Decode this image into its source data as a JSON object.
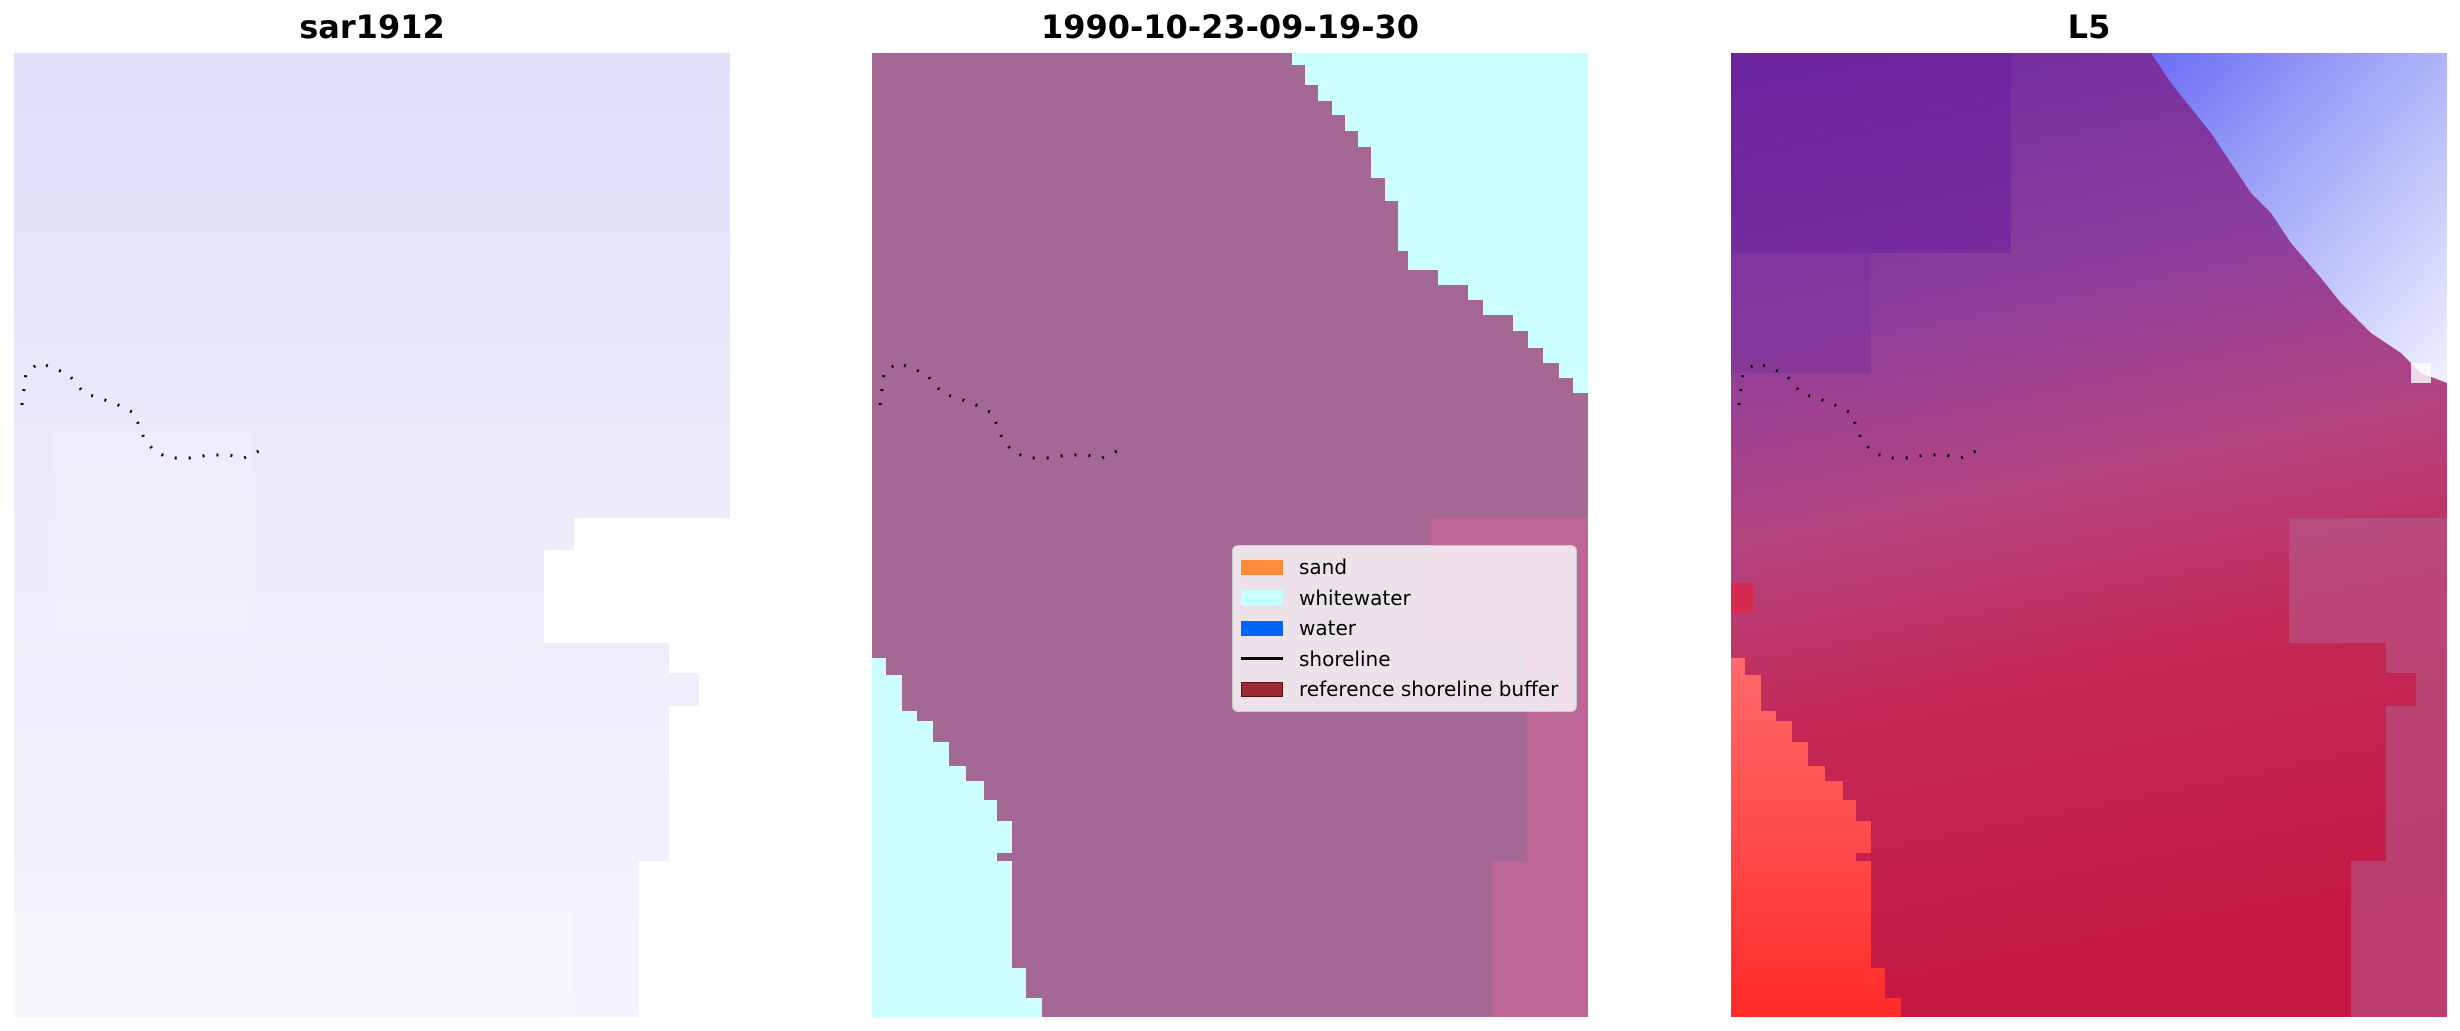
{
  "panels": [
    {
      "title": "sar1912"
    },
    {
      "title": "1990-10-23-09-19-30"
    },
    {
      "title": "L5"
    }
  ],
  "legend": {
    "items": [
      {
        "label": "sand",
        "color": "#ff8c3a",
        "kind": "patch"
      },
      {
        "label": "whitewater",
        "color": "#c8ffff",
        "kind": "patch"
      },
      {
        "label": "water",
        "color": "#0064ff",
        "kind": "patch"
      },
      {
        "label": "shoreline",
        "color": "#000000",
        "kind": "line"
      },
      {
        "label": "reference shoreline buffer",
        "color": "#9b2a34",
        "kind": "patch"
      }
    ]
  },
  "colors": {
    "sar_base": "#e6e6fb",
    "classification_land": "#a56895",
    "classification_whitewater": "#ccffff",
    "reference_buffer_overlay": "#bc6796",
    "l5_purple": "#7a3aa6",
    "l5_red": "#c81e4a",
    "l5_bright_red": "#ff3333",
    "l5_white": "#f2f2ff"
  }
}
